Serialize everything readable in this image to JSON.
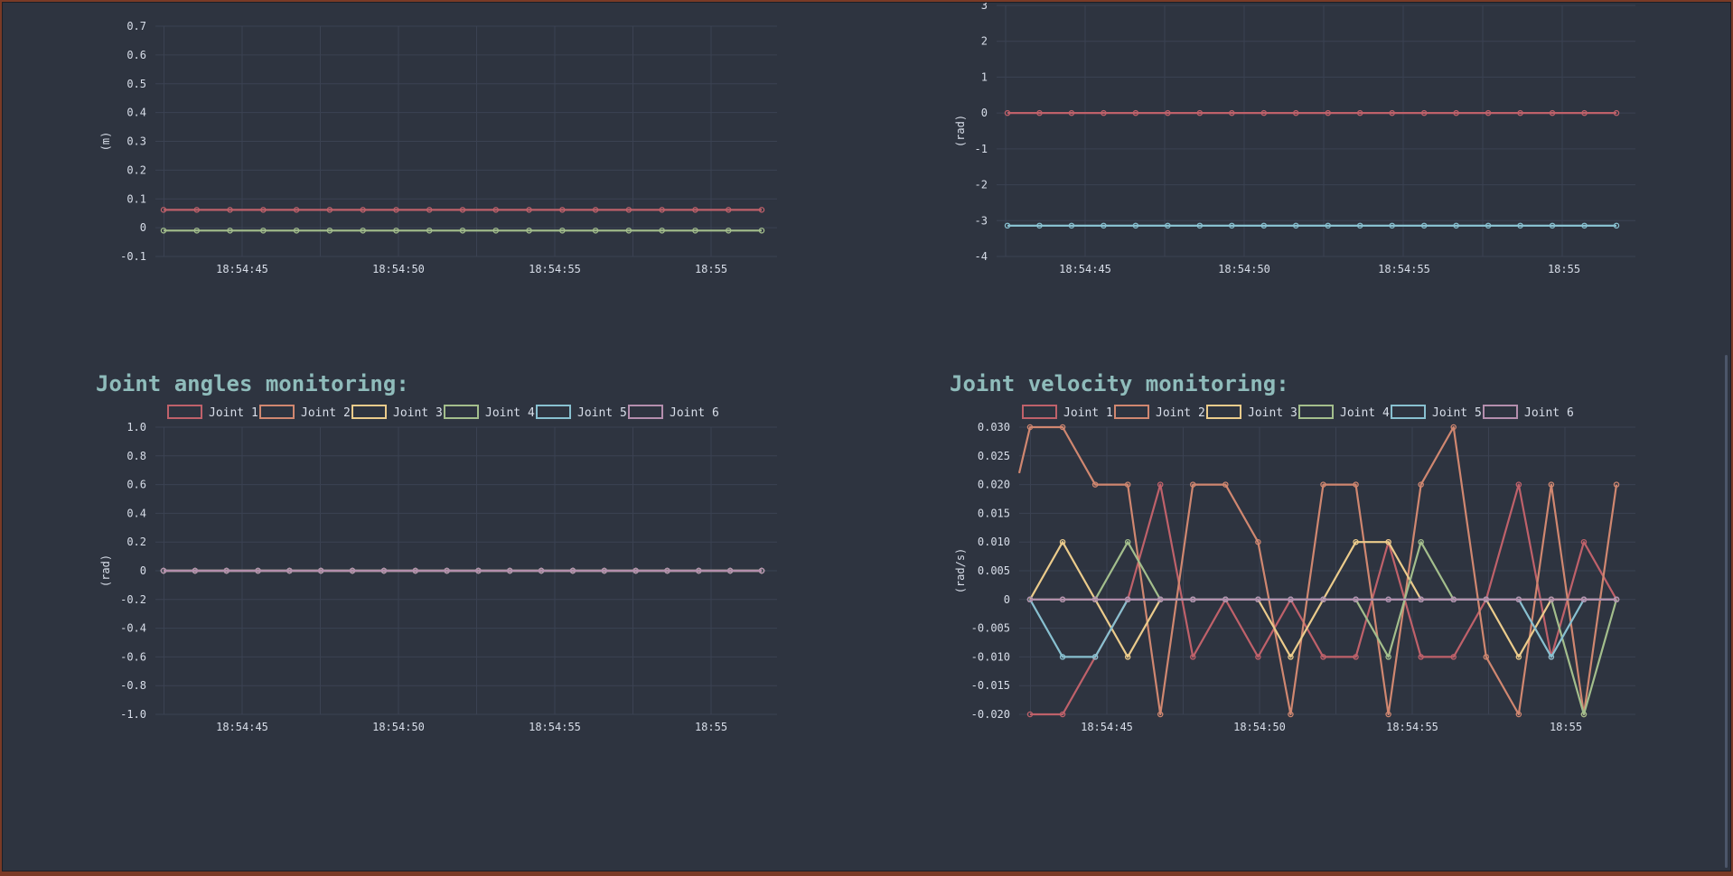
{
  "colors": {
    "background": "#2e3440",
    "grid": "#3b4252",
    "text": "#d8dee9",
    "title": "#8fbcbb",
    "joint_colors": [
      "#bf616a",
      "#d08770",
      "#ebcb8b",
      "#a3be8c",
      "#88c0d0",
      "#b48ead"
    ]
  },
  "chart_data": [
    {
      "id": "position",
      "type": "line",
      "title": "",
      "xlabel": "",
      "ylabel": "(m)",
      "ylim": [
        -0.1,
        0.7
      ],
      "yticks": [
        -0.1,
        0,
        0.1,
        0.2,
        0.3,
        0.4,
        0.5,
        0.6,
        0.7
      ],
      "ytick_labels": [
        "-0.1",
        "0",
        "0.1",
        "0.2",
        "0.3",
        "0.4",
        "0.5",
        "0.6",
        "0.7"
      ],
      "xticks": [
        "18:54:45",
        "18:54:50",
        "18:54:55",
        "18:55"
      ],
      "show_legend": false,
      "series": [
        {
          "color": "#bf616a",
          "values": [
            0.062,
            0.062,
            0.062,
            0.062,
            0.062,
            0.062,
            0.062,
            0.062,
            0.062,
            0.062,
            0.062,
            0.062,
            0.062,
            0.062,
            0.062,
            0.062,
            0.062,
            0.062,
            0.062
          ]
        },
        {
          "color": "#a3be8c",
          "values": [
            -0.01,
            -0.01,
            -0.01,
            -0.01,
            -0.01,
            -0.01,
            -0.01,
            -0.01,
            -0.01,
            -0.01,
            -0.01,
            -0.01,
            -0.01,
            -0.01,
            -0.01,
            -0.01,
            -0.01,
            -0.01,
            -0.01
          ]
        }
      ]
    },
    {
      "id": "orientation",
      "type": "line",
      "title": "",
      "xlabel": "",
      "ylabel": "(rad)",
      "ylim": [
        -4,
        3
      ],
      "yticks": [
        -4,
        -3,
        -2,
        -1,
        0,
        1,
        2,
        3
      ],
      "ytick_labels": [
        "-4",
        "-3",
        "-2",
        "-1",
        "0",
        "1",
        "2",
        "3"
      ],
      "xticks": [
        "18:54:45",
        "18:54:50",
        "18:54:55",
        "18:55"
      ],
      "show_legend": false,
      "series": [
        {
          "color": "#bf616a",
          "values": [
            0,
            0,
            0,
            0,
            0,
            0,
            0,
            0,
            0,
            0,
            0,
            0,
            0,
            0,
            0,
            0,
            0,
            0,
            0,
            0
          ]
        },
        {
          "color": "#88c0d0",
          "values": [
            -3.14,
            -3.14,
            -3.14,
            -3.14,
            -3.14,
            -3.14,
            -3.14,
            -3.14,
            -3.14,
            -3.14,
            -3.14,
            -3.14,
            -3.14,
            -3.14,
            -3.14,
            -3.14,
            -3.14,
            -3.14,
            -3.14,
            -3.14
          ]
        }
      ]
    },
    {
      "id": "joint_angles",
      "type": "line",
      "title": "Joint angles monitoring:",
      "xlabel": "",
      "ylabel": "(rad)",
      "ylim": [
        -1.0,
        1.0
      ],
      "yticks": [
        -1.0,
        -0.8,
        -0.6,
        -0.4,
        -0.2,
        0,
        0.2,
        0.4,
        0.6,
        0.8,
        1.0
      ],
      "ytick_labels": [
        "-1.0",
        "-0.8",
        "-0.6",
        "-0.4",
        "-0.2",
        "0",
        "0.2",
        "0.4",
        "0.6",
        "0.8",
        "1.0"
      ],
      "xticks": [
        "18:54:45",
        "18:54:50",
        "18:54:55",
        "18:55"
      ],
      "show_legend": true,
      "legend": [
        "Joint 1",
        "Joint 2",
        "Joint 3",
        "Joint 4",
        "Joint 5",
        "Joint 6"
      ],
      "series": [
        {
          "name": "Joint 1",
          "color": "#bf616a",
          "values": [
            0,
            0,
            0,
            0,
            0,
            0,
            0,
            0,
            0,
            0,
            0,
            0,
            0,
            0,
            0,
            0,
            0,
            0,
            0,
            0
          ]
        },
        {
          "name": "Joint 2",
          "color": "#d08770",
          "values": [
            0,
            0,
            0,
            0,
            0,
            0,
            0,
            0,
            0,
            0,
            0,
            0,
            0,
            0,
            0,
            0,
            0,
            0,
            0,
            0
          ]
        },
        {
          "name": "Joint 3",
          "color": "#ebcb8b",
          "values": [
            0,
            0,
            0,
            0,
            0,
            0,
            0,
            0,
            0,
            0,
            0,
            0,
            0,
            0,
            0,
            0,
            0,
            0,
            0,
            0
          ]
        },
        {
          "name": "Joint 4",
          "color": "#a3be8c",
          "values": [
            0,
            0,
            0,
            0,
            0,
            0,
            0,
            0,
            0,
            0,
            0,
            0,
            0,
            0,
            0,
            0,
            0,
            0,
            0,
            0
          ]
        },
        {
          "name": "Joint 5",
          "color": "#88c0d0",
          "values": [
            0,
            0,
            0,
            0,
            0,
            0,
            0,
            0,
            0,
            0,
            0,
            0,
            0,
            0,
            0,
            0,
            0,
            0,
            0,
            0
          ]
        },
        {
          "name": "Joint 6",
          "color": "#b48ead",
          "values": [
            0,
            0,
            0,
            0,
            0,
            0,
            0,
            0,
            0,
            0,
            0,
            0,
            0,
            0,
            0,
            0,
            0,
            0,
            0,
            0
          ]
        }
      ]
    },
    {
      "id": "joint_velocity",
      "type": "line",
      "title": "Joint velocity monitoring:",
      "xlabel": "",
      "ylabel": "(rad/s)",
      "ylim": [
        -0.02,
        0.03
      ],
      "yticks": [
        -0.02,
        -0.015,
        -0.01,
        -0.005,
        0,
        0.005,
        0.01,
        0.015,
        0.02,
        0.025,
        0.03
      ],
      "ytick_labels": [
        "-0.020",
        "-0.015",
        "-0.010",
        "-0.005",
        "0",
        "0.005",
        "0.010",
        "0.015",
        "0.020",
        "0.025",
        "0.030"
      ],
      "xticks": [
        "18:54:45",
        "18:54:50",
        "18:54:55",
        "18:55"
      ],
      "show_legend": true,
      "legend": [
        "Joint 1",
        "Joint 2",
        "Joint 3",
        "Joint 4",
        "Joint 5",
        "Joint 6"
      ],
      "series": [
        {
          "name": "Joint 1",
          "color": "#bf616a",
          "values": [
            -0.02,
            -0.02,
            -0.01,
            0,
            0.02,
            -0.01,
            0,
            -0.01,
            0,
            -0.01,
            -0.01,
            0.01,
            -0.01,
            -0.01,
            0,
            0.02,
            -0.01,
            0.01,
            0
          ]
        },
        {
          "name": "Joint 2",
          "color": "#d08770",
          "values": [
            0.03,
            0.03,
            0.02,
            0.02,
            -0.02,
            0.02,
            0.02,
            0.01,
            -0.02,
            0.02,
            0.02,
            -0.02,
            0.02,
            0.03,
            -0.01,
            -0.02,
            0.02,
            -0.02,
            0.02
          ]
        },
        {
          "name": "Joint 3",
          "color": "#ebcb8b",
          "values": [
            0,
            0.01,
            0,
            -0.01,
            0,
            0,
            0,
            0,
            -0.01,
            0,
            0.01,
            0.01,
            0,
            0,
            0,
            -0.01,
            0,
            0,
            0
          ]
        },
        {
          "name": "Joint 4",
          "color": "#a3be8c",
          "values": [
            0,
            0,
            0,
            0.01,
            0,
            0,
            0,
            0,
            0,
            0,
            0,
            -0.01,
            0.01,
            0,
            0,
            0,
            0,
            -0.02,
            0
          ]
        },
        {
          "name": "Joint 5",
          "color": "#88c0d0",
          "values": [
            0,
            -0.01,
            -0.01,
            0,
            0,
            0,
            0,
            0,
            0,
            0,
            0,
            0,
            0,
            0,
            0,
            0,
            -0.01,
            0,
            0
          ]
        },
        {
          "name": "Joint 6",
          "color": "#b48ead",
          "values": [
            0,
            0,
            0,
            0,
            0,
            0,
            0,
            0,
            0,
            0,
            0,
            0,
            0,
            0,
            0,
            0,
            0,
            0,
            0
          ]
        }
      ]
    }
  ]
}
